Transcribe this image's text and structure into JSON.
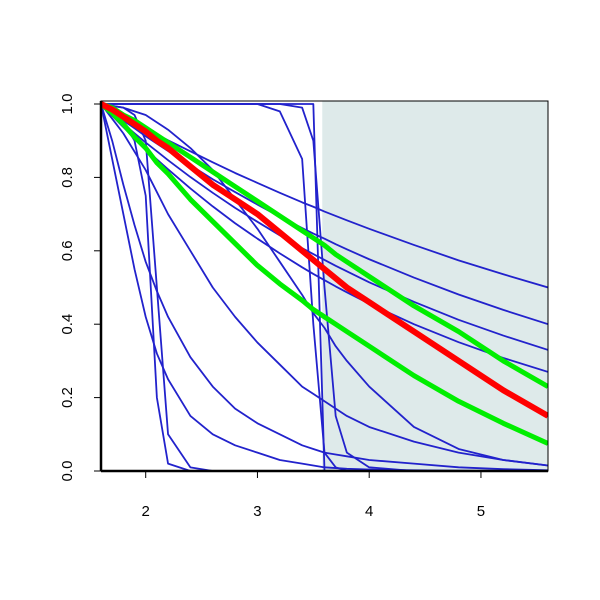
{
  "chart_data": {
    "type": "line",
    "xlim": [
      1.6,
      5.6
    ],
    "ylim": [
      0,
      1
    ],
    "xticks": [
      2,
      3,
      4,
      5
    ],
    "yticks": [
      {
        "value": 0,
        "label": "0.0"
      },
      0.2,
      0.4,
      0.6,
      0.8,
      {
        "value": 1,
        "label": "1.0"
      }
    ],
    "shade": {
      "xmin": 3.58,
      "xmax": 5.6,
      "color": "#deeaea"
    },
    "x": [
      1.6,
      1.7,
      1.8,
      1.9,
      2.0,
      2.1,
      2.2,
      2.4,
      2.6,
      2.8,
      3.0,
      3.2,
      3.4,
      3.5,
      3.6,
      3.7,
      3.8,
      4.0,
      4.4,
      4.8,
      5.2,
      5.6
    ],
    "series": [
      {
        "color": "#2222cc",
        "width": 1.8,
        "values": [
          1,
          0.983,
          0.966,
          0.949,
          0.933,
          0.917,
          0.901,
          0.871,
          0.841,
          0.812,
          0.785,
          0.758,
          0.732,
          0.72,
          0.707,
          0.695,
          0.683,
          0.66,
          0.616,
          0.574,
          0.536,
          0.5
        ]
      },
      {
        "color": "#2222cc",
        "width": 1.8,
        "values": [
          1,
          0.977,
          0.955,
          0.934,
          0.912,
          0.892,
          0.872,
          0.833,
          0.795,
          0.76,
          0.726,
          0.693,
          0.662,
          0.647,
          0.633,
          0.618,
          0.604,
          0.577,
          0.527,
          0.481,
          0.439,
          0.4
        ]
      },
      {
        "color": "#2222cc",
        "width": 1.8,
        "values": [
          1,
          0.973,
          0.946,
          0.92,
          0.895,
          0.871,
          0.847,
          0.801,
          0.758,
          0.717,
          0.679,
          0.642,
          0.607,
          0.591,
          0.575,
          0.559,
          0.544,
          0.514,
          0.461,
          0.412,
          0.369,
          0.33
        ]
      },
      {
        "color": "#2222cc",
        "width": 1.8,
        "values": [
          1,
          0.968,
          0.937,
          0.907,
          0.877,
          0.849,
          0.822,
          0.77,
          0.721,
          0.675,
          0.633,
          0.593,
          0.555,
          0.537,
          0.52,
          0.503,
          0.487,
          0.456,
          0.4,
          0.351,
          0.308,
          0.27
        ]
      },
      {
        "color": "#2222cc",
        "width": 1.8,
        "values": [
          1,
          0.98,
          0.95,
          0.9,
          0.75,
          0.2,
          0.02,
          0,
          0,
          0,
          0,
          0,
          0,
          0,
          0,
          0,
          0,
          0,
          0,
          0,
          0,
          0
        ]
      },
      {
        "color": "#2222cc",
        "width": 1.8,
        "values": [
          1,
          0.995,
          0.99,
          0.97,
          0.9,
          0.5,
          0.1,
          0.01,
          0,
          0,
          0,
          0,
          0,
          0,
          0,
          0,
          0,
          0,
          0,
          0,
          0,
          0
        ]
      },
      {
        "color": "#2222cc",
        "width": 1.8,
        "values": [
          1,
          0.85,
          0.7,
          0.55,
          0.42,
          0.32,
          0.25,
          0.15,
          0.1,
          0.07,
          0.05,
          0.03,
          0.02,
          0.015,
          0.01,
          0.008,
          0.006,
          0.004,
          0.002,
          0.001,
          0,
          0
        ]
      },
      {
        "color": "#2222cc",
        "width": 1.8,
        "values": [
          1,
          0.9,
          0.78,
          0.67,
          0.57,
          0.49,
          0.42,
          0.31,
          0.23,
          0.17,
          0.13,
          0.1,
          0.07,
          0.06,
          0.05,
          0.045,
          0.04,
          0.03,
          0.02,
          0.01,
          0.005,
          0.002
        ]
      },
      {
        "color": "#2222cc",
        "width": 1.8,
        "values": [
          1,
          1,
          1,
          1,
          1,
          1,
          1,
          1,
          1,
          1,
          1,
          0.98,
          0.85,
          0.4,
          0.05,
          0.01,
          0,
          0,
          0,
          0,
          0,
          0
        ]
      },
      {
        "color": "#2222cc",
        "width": 1.8,
        "values": [
          1,
          1,
          1,
          1,
          1,
          1,
          1,
          1,
          1,
          1,
          1,
          1,
          0.99,
          0.9,
          0.5,
          0.15,
          0.05,
          0.01,
          0,
          0,
          0,
          0
        ]
      },
      {
        "color": "#2222cc",
        "width": 1.8,
        "values": [
          1,
          1,
          1,
          1,
          1,
          1,
          1,
          1,
          1,
          1,
          1,
          1,
          1,
          1,
          0,
          0,
          0,
          0,
          0,
          0,
          0,
          0
        ]
      },
      {
        "color": "#2222cc",
        "width": 1.8,
        "values": [
          1,
          0.96,
          0.92,
          0.87,
          0.82,
          0.76,
          0.7,
          0.6,
          0.5,
          0.42,
          0.35,
          0.29,
          0.23,
          0.21,
          0.19,
          0.17,
          0.15,
          0.12,
          0.08,
          0.05,
          0.03,
          0.015
        ]
      },
      {
        "color": "#2222cc",
        "width": 1.8,
        "values": [
          1,
          0.995,
          0.99,
          0.98,
          0.97,
          0.95,
          0.93,
          0.88,
          0.82,
          0.74,
          0.66,
          0.57,
          0.48,
          0.43,
          0.39,
          0.34,
          0.3,
          0.23,
          0.12,
          0.06,
          0.03,
          0.015
        ]
      },
      {
        "color": "#00ee00",
        "width": 5,
        "values": [
          1,
          0.99,
          0.97,
          0.955,
          0.935,
          0.915,
          0.895,
          0.855,
          0.815,
          0.775,
          0.735,
          0.695,
          0.655,
          0.635,
          0.615,
          0.59,
          0.57,
          0.53,
          0.45,
          0.38,
          0.3,
          0.23
        ]
      },
      {
        "color": "#00ee00",
        "width": 5,
        "values": [
          1,
          0.975,
          0.945,
          0.91,
          0.88,
          0.84,
          0.81,
          0.74,
          0.68,
          0.62,
          0.56,
          0.51,
          0.465,
          0.44,
          0.42,
          0.4,
          0.38,
          0.34,
          0.26,
          0.19,
          0.13,
          0.075
        ]
      },
      {
        "color": "#ff0000",
        "width": 6,
        "values": [
          1,
          0.985,
          0.965,
          0.945,
          0.925,
          0.9,
          0.88,
          0.83,
          0.78,
          0.74,
          0.7,
          0.65,
          0.6,
          0.575,
          0.55,
          0.525,
          0.5,
          0.46,
          0.38,
          0.3,
          0.22,
          0.15
        ]
      }
    ]
  }
}
